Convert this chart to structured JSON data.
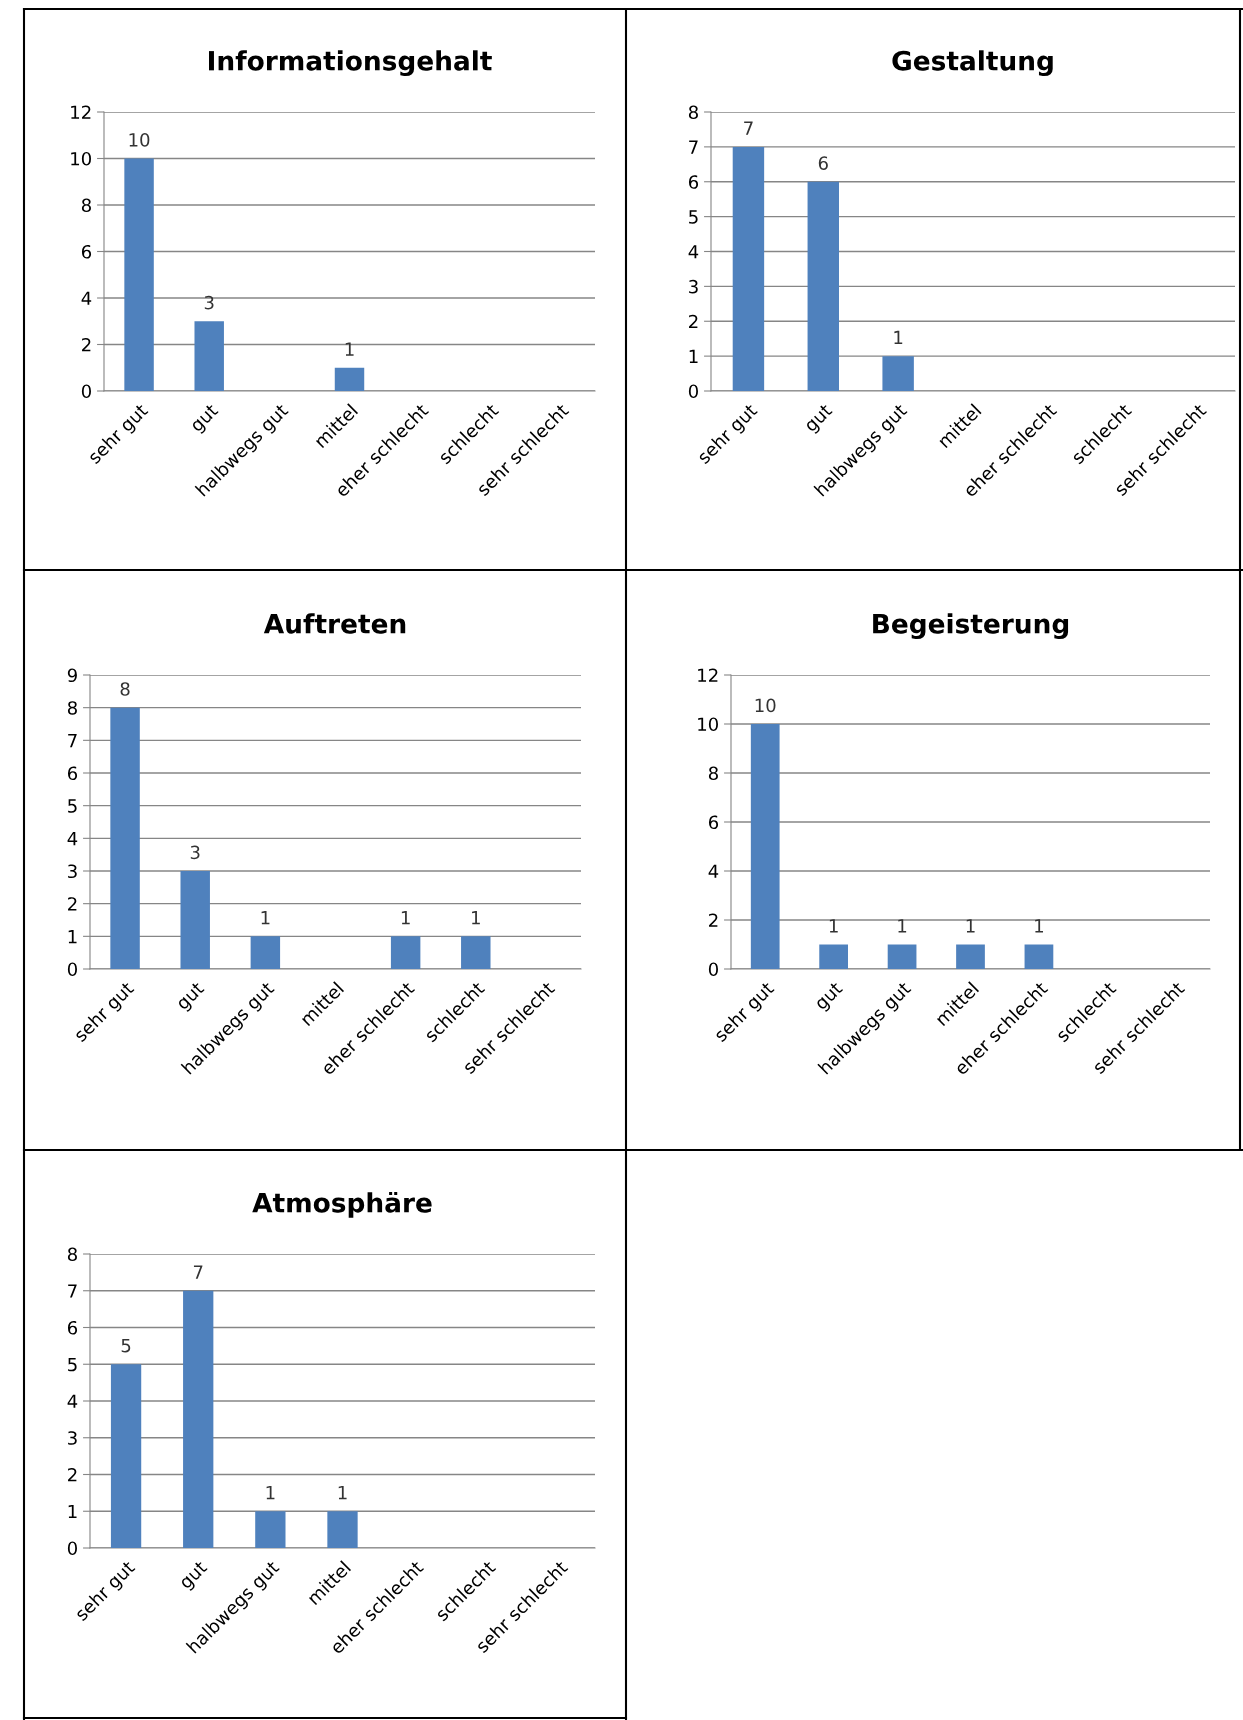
{
  "chart_data": [
    {
      "type": "bar",
      "title": "Informationsgehalt",
      "categories": [
        "sehr gut",
        "gut",
        "halbwegs gut",
        "mittel",
        "eher schlecht",
        "schlecht",
        "sehr schlecht"
      ],
      "values": [
        10,
        3,
        0,
        1,
        0,
        0,
        0
      ],
      "value_labels": [
        "10",
        "3",
        null,
        "1",
        null,
        null,
        null
      ],
      "color": "#4f81bd",
      "ylim": [
        0,
        12
      ],
      "yticks": [
        0,
        2,
        4,
        6,
        8,
        10,
        12
      ],
      "grid": "y",
      "legend": false
    },
    {
      "type": "bar",
      "title": "Gestaltung",
      "categories": [
        "sehr gut",
        "gut",
        "halbwegs gut",
        "mittel",
        "eher schlecht",
        "schlecht",
        "sehr schlecht"
      ],
      "values": [
        7,
        6,
        1,
        0,
        0,
        0,
        0
      ],
      "value_labels": [
        "7",
        "6",
        "1",
        null,
        null,
        null,
        null
      ],
      "color": "#4f81bd",
      "ylim": [
        0,
        8
      ],
      "yticks": [
        0,
        1,
        2,
        3,
        4,
        5,
        6,
        7,
        8
      ],
      "grid": "y",
      "legend": false
    },
    {
      "type": "bar",
      "title": "Auftreten",
      "categories": [
        "sehr gut",
        "gut",
        "halbwegs gut",
        "mittel",
        "eher schlecht",
        "schlecht",
        "sehr schlecht"
      ],
      "values": [
        8,
        3,
        1,
        0,
        1,
        1,
        0
      ],
      "value_labels": [
        "8",
        "3",
        "1",
        null,
        "1",
        "1",
        null
      ],
      "color": "#4f81bd",
      "ylim": [
        0,
        9
      ],
      "yticks": [
        0,
        1,
        2,
        3,
        4,
        5,
        6,
        7,
        8,
        9
      ],
      "grid": "y",
      "legend": false
    },
    {
      "type": "bar",
      "title": "Begeisterung",
      "categories": [
        "sehr gut",
        "gut",
        "halbwegs gut",
        "mittel",
        "eher schlecht",
        "schlecht",
        "sehr schlecht"
      ],
      "values": [
        10,
        1,
        1,
        1,
        1,
        0,
        0
      ],
      "value_labels": [
        "10",
        "1",
        "1",
        "1",
        "1",
        null,
        null
      ],
      "color": "#4f81bd",
      "ylim": [
        0,
        12
      ],
      "yticks": [
        0,
        2,
        4,
        6,
        8,
        10,
        12
      ],
      "grid": "y",
      "legend": false
    },
    {
      "type": "bar",
      "title": "Atmosphäre",
      "categories": [
        "sehr gut",
        "gut",
        "halbwegs gut",
        "mittel",
        "eher schlecht",
        "schlecht",
        "sehr schlecht"
      ],
      "values": [
        5,
        7,
        1,
        1,
        0,
        0,
        0
      ],
      "value_labels": [
        "5",
        "7",
        "1",
        "1",
        null,
        null,
        null
      ],
      "color": "#4f81bd",
      "ylim": [
        0,
        8
      ],
      "yticks": [
        0,
        1,
        2,
        3,
        4,
        5,
        6,
        7,
        8
      ],
      "grid": "y",
      "legend": false
    }
  ]
}
